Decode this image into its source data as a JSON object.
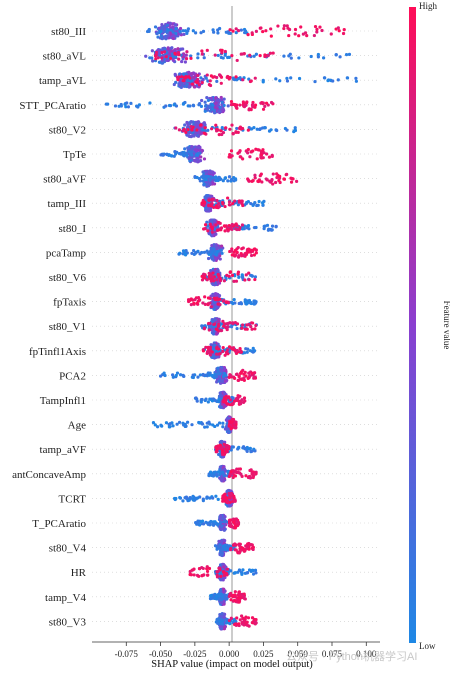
{
  "chart_data": {
    "type": "scatter",
    "subtype": "shap-beeswarm",
    "xlabel": "SHAP value (impact on model output)",
    "xlim": [
      -0.1,
      0.11
    ],
    "xticks": [
      -0.075,
      -0.05,
      -0.025,
      0.0,
      0.025,
      0.05,
      0.075,
      0.1
    ],
    "xtick_labels": [
      "-0.075",
      "-0.050",
      "-0.025",
      "0.000",
      "0.025",
      "0.050",
      "0.075",
      "0.100"
    ],
    "zero_line": 0.0,
    "colorbar": {
      "title": "Feature value",
      "high_label": "High",
      "low_label": "Low",
      "low_color": "#1E88E5",
      "high_color": "#FF0D57"
    },
    "features": [
      {
        "name": "st80_III",
        "low_range": [
          -0.06,
          0.02
        ],
        "high_range": [
          0.0,
          0.085
        ],
        "core": -0.045,
        "spread": 0.05
      },
      {
        "name": "st80_aVL",
        "low_range": [
          -0.06,
          0.09
        ],
        "high_range": [
          -0.06,
          0.035
        ],
        "core": -0.045,
        "spread": 0.06
      },
      {
        "name": "tamp_aVL",
        "low_range": [
          -0.04,
          0.1
        ],
        "high_range": [
          -0.04,
          0.02
        ],
        "core": -0.03,
        "spread": 0.05
      },
      {
        "name": "STT_PCAratio",
        "low_range": [
          -0.09,
          0.0
        ],
        "high_range": [
          0.0,
          0.035
        ],
        "core": -0.01,
        "spread": 0.04
      },
      {
        "name": "st80_V2",
        "low_range": [
          -0.04,
          0.05
        ],
        "high_range": [
          -0.04,
          0.015
        ],
        "core": -0.025,
        "spread": 0.035
      },
      {
        "name": "TpTe",
        "low_range": [
          -0.05,
          -0.02
        ],
        "high_range": [
          0.0,
          0.032
        ],
        "core": -0.025,
        "spread": 0.03
      },
      {
        "name": "st80_aVF",
        "low_range": [
          -0.025,
          0.005
        ],
        "high_range": [
          0.012,
          0.05
        ],
        "core": -0.015,
        "spread": 0.02
      },
      {
        "name": "tamp_III",
        "low_range": [
          -0.02,
          0.03
        ],
        "high_range": [
          -0.02,
          0.01
        ],
        "core": -0.015,
        "spread": 0.015
      },
      {
        "name": "st80_I",
        "low_range": [
          -0.02,
          0.035
        ],
        "high_range": [
          -0.02,
          0.01
        ],
        "core": -0.012,
        "spread": 0.015
      },
      {
        "name": "pcaTamp",
        "low_range": [
          -0.04,
          -0.005
        ],
        "high_range": [
          0.0,
          0.02
        ],
        "core": -0.01,
        "spread": 0.02
      },
      {
        "name": "st80_V6",
        "low_range": [
          -0.02,
          0.02
        ],
        "high_range": [
          -0.02,
          0.02
        ],
        "core": -0.01,
        "spread": 0.015
      },
      {
        "name": "fpTaxis",
        "low_range": [
          -0.01,
          0.02
        ],
        "high_range": [
          -0.03,
          0.0
        ],
        "core": -0.01,
        "spread": 0.015
      },
      {
        "name": "st80_V1",
        "low_range": [
          -0.02,
          0.02
        ],
        "high_range": [
          -0.02,
          0.02
        ],
        "core": -0.01,
        "spread": 0.015
      },
      {
        "name": "fpTinfl1Axis",
        "low_range": [
          -0.02,
          0.02
        ],
        "high_range": [
          -0.02,
          0.01
        ],
        "core": -0.01,
        "spread": 0.015
      },
      {
        "name": "PCA2",
        "low_range": [
          -0.05,
          0.0
        ],
        "high_range": [
          0.0,
          0.02
        ],
        "core": -0.005,
        "spread": 0.02
      },
      {
        "name": "TampInfl1",
        "low_range": [
          -0.025,
          0.005
        ],
        "high_range": [
          -0.005,
          0.012
        ],
        "core": -0.005,
        "spread": 0.012
      },
      {
        "name": "Age",
        "low_range": [
          -0.06,
          0.0
        ],
        "high_range": [
          0.0,
          0.005
        ],
        "core": 0.0,
        "spread": 0.01
      },
      {
        "name": "tamp_aVF",
        "low_range": [
          -0.01,
          0.02
        ],
        "high_range": [
          -0.01,
          0.0
        ],
        "core": -0.005,
        "spread": 0.01
      },
      {
        "name": "antConcaveAmp",
        "low_range": [
          -0.015,
          0.005
        ],
        "high_range": [
          0.0,
          0.02
        ],
        "core": -0.005,
        "spread": 0.01
      },
      {
        "name": "TCRT",
        "low_range": [
          -0.04,
          0.0
        ],
        "high_range": [
          -0.005,
          0.005
        ],
        "core": 0.0,
        "spread": 0.01
      },
      {
        "name": "T_PCAratio",
        "low_range": [
          -0.025,
          0.0
        ],
        "high_range": [
          0.0,
          0.007
        ],
        "core": -0.005,
        "spread": 0.01
      },
      {
        "name": "st80_V4",
        "low_range": [
          -0.01,
          0.005
        ],
        "high_range": [
          0.0,
          0.018
        ],
        "core": -0.005,
        "spread": 0.01
      },
      {
        "name": "HR",
        "low_range": [
          -0.01,
          0.02
        ],
        "high_range": [
          -0.03,
          0.0
        ],
        "core": -0.005,
        "spread": 0.01
      },
      {
        "name": "tamp_V4",
        "low_range": [
          -0.015,
          0.0
        ],
        "high_range": [
          0.0,
          0.012
        ],
        "core": -0.005,
        "spread": 0.01
      },
      {
        "name": "st80_V3",
        "low_range": [
          -0.01,
          0.005
        ],
        "high_range": [
          0.0,
          0.02
        ],
        "core": -0.005,
        "spread": 0.01
      }
    ]
  },
  "watermark": "公众号 · Python机器学习AI"
}
